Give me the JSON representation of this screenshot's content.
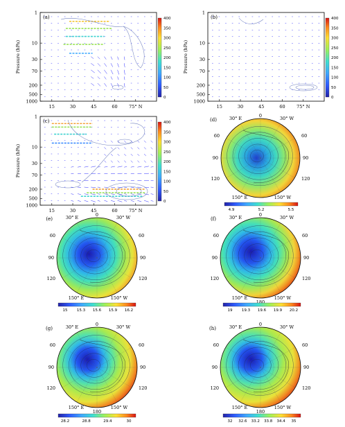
{
  "colors": {
    "vector": "#2b2bff",
    "contour": "#6f7fbf",
    "axes": "#000000"
  },
  "chart_data": [
    {
      "type": "vector-contour",
      "panel_label": "(a)",
      "xlabel": "",
      "ylabel": "Pressure (hPa)",
      "x_ticks": [
        "15",
        "30",
        "45",
        "60",
        "75° N"
      ],
      "y_ticks": [
        "1",
        "10",
        "30",
        "70",
        "200",
        "500",
        "1000"
      ],
      "colorbar": {
        "orientation": "vertical",
        "ticks": [
          "0",
          "50",
          "100",
          "150",
          "200",
          "250",
          "300",
          "350",
          "400"
        ]
      }
    },
    {
      "type": "vector-contour",
      "panel_label": "(b)",
      "xlabel": "",
      "ylabel": "Pressure (hPa)",
      "x_ticks": [
        "15",
        "30",
        "45",
        "60",
        "75° N"
      ],
      "y_ticks": [
        "1",
        "10",
        "30",
        "70",
        "200",
        "500",
        "1000"
      ],
      "colorbar": {
        "orientation": "vertical",
        "ticks": [
          "0",
          "50",
          "100",
          "150",
          "200",
          "250",
          "300",
          "350",
          "400"
        ]
      }
    },
    {
      "type": "vector-contour",
      "panel_label": "(c)",
      "xlabel": "",
      "ylabel": "Pressure (hPa)",
      "x_ticks": [
        "15",
        "30",
        "45",
        "60",
        "75° N"
      ],
      "y_ticks": [
        "1",
        "10",
        "30",
        "70",
        "200",
        "500",
        "1000"
      ],
      "colorbar": {
        "orientation": "vertical",
        "ticks": [
          "0",
          "50",
          "100",
          "150",
          "200",
          "250",
          "300",
          "350",
          "400"
        ]
      }
    },
    {
      "type": "heatmap",
      "projection": "polar",
      "panel_label": "(d)",
      "map_labels": [
        "0",
        "30° E",
        "30° W",
        "60",
        "60",
        "90",
        "90",
        "120",
        "120",
        "150° E",
        "150° W"
      ],
      "colorbar": {
        "orientation": "horizontal",
        "ticks": [
          "4.9",
          "5.2",
          "5.5"
        ]
      }
    },
    {
      "type": "heatmap",
      "projection": "polar",
      "panel_label": "(e)",
      "map_labels": [
        "0",
        "30° E",
        "30° W",
        "60",
        "60",
        "90",
        "90",
        "120",
        "120",
        "150° E",
        "150° W"
      ],
      "colorbar": {
        "orientation": "horizontal",
        "ticks": [
          "15",
          "15.3",
          "15.6",
          "15.9",
          "16.2"
        ]
      }
    },
    {
      "type": "heatmap",
      "projection": "polar",
      "panel_label": "(f)",
      "map_labels": [
        "0",
        "30° E",
        "30° W",
        "60",
        "60",
        "90",
        "90",
        "120",
        "120",
        "150° E",
        "150° W",
        "180"
      ],
      "colorbar": {
        "orientation": "horizontal",
        "ticks": [
          "19",
          "19.3",
          "19.6",
          "19.9",
          "20.2"
        ]
      }
    },
    {
      "type": "heatmap",
      "projection": "polar",
      "panel_label": "(g)",
      "map_labels": [
        "0",
        "30° E",
        "30° W",
        "60",
        "60",
        "90",
        "90",
        "120",
        "120",
        "150° E",
        "150° W",
        "180"
      ],
      "colorbar": {
        "orientation": "horizontal",
        "ticks": [
          "28.2",
          "28.8",
          "29.4",
          "30"
        ]
      }
    },
    {
      "type": "heatmap",
      "projection": "polar",
      "panel_label": "(h)",
      "map_labels": [
        "0",
        "30° E",
        "30° W",
        "60",
        "60",
        "90",
        "90",
        "120",
        "120",
        "150° E",
        "150° W",
        "180"
      ],
      "colorbar": {
        "orientation": "horizontal",
        "ticks": [
          "32",
          "32.6",
          "33.2",
          "33.8",
          "34.4",
          "35"
        ]
      }
    }
  ]
}
